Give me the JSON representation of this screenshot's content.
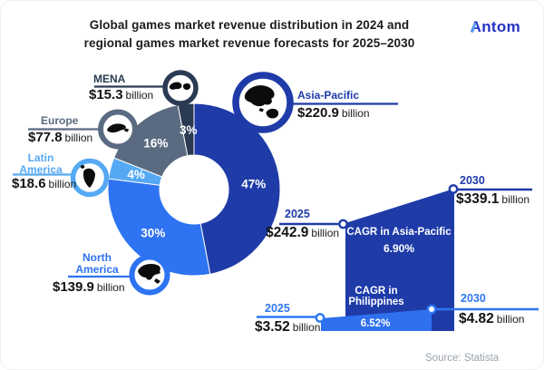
{
  "card": {
    "title_line1": "Global games market revenue distribution in 2024 and",
    "title_line2": "regional games market revenue forecasts for 2025–2030",
    "logo": "Antom",
    "source": "Source: Statista"
  },
  "chart_data": {
    "type": "pie",
    "title": "Global games market revenue distribution in 2024",
    "unit": "USD billion",
    "legend_position": "around-donut",
    "slices": [
      {
        "name": "Asia-Pacific",
        "pct": 47,
        "amount": "$220.9",
        "unit": "billion",
        "color": "#1e3ba8",
        "icon": "asia-pacific-map-icon"
      },
      {
        "name": "North America",
        "pct": 30,
        "amount": "$139.9",
        "unit": "billion",
        "color": "#2e73f1",
        "icon": "north-america-map-icon"
      },
      {
        "name": "Latin America",
        "pct": 4,
        "amount": "$18.6",
        "unit": "billion",
        "color": "#55a9f4",
        "icon": "latin-america-map-icon"
      },
      {
        "name": "Europe",
        "pct": 16,
        "amount": "$77.8",
        "unit": "billion",
        "color": "#5a6b81",
        "icon": "europe-map-icon"
      },
      {
        "name": "MENA",
        "pct": 3,
        "amount": "$15.3",
        "unit": "billion",
        "color": "#2a3a52",
        "icon": "mena-map-icon"
      }
    ],
    "forecasts": [
      {
        "name": "CAGR in Asia-Pacific",
        "rate": "6.90%",
        "color": "#1e3ba8",
        "start": {
          "year": "2025",
          "amount": "$242.9",
          "unit": "billion"
        },
        "end": {
          "year": "2030",
          "amount": "$339.1",
          "unit": "billion"
        }
      },
      {
        "name": "CAGR in Philippines",
        "rate": "6.52%",
        "color": "#2f70ef",
        "start": {
          "year": "2025",
          "amount": "$3.52",
          "unit": "billion"
        },
        "end": {
          "year": "2030",
          "amount": "$4.82",
          "unit": "billion"
        }
      }
    ]
  }
}
